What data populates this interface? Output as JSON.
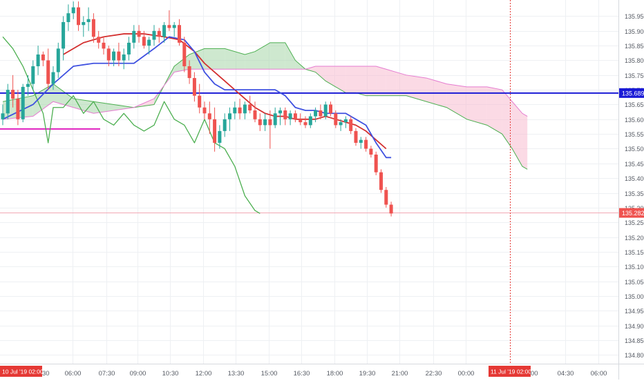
{
  "chart_data": {
    "type": "candlestick",
    "title": "",
    "xlabel": "",
    "ylabel": "",
    "ylim": [
      134.77,
      136.005
    ],
    "y_ticks": [
      134.8,
      134.85,
      134.9,
      134.95,
      135.0,
      135.05,
      135.1,
      135.15,
      135.2,
      135.25,
      135.3,
      135.35,
      135.4,
      135.45,
      135.5,
      135.55,
      135.6,
      135.65,
      135.7,
      135.75,
      135.8,
      135.85,
      135.9,
      135.95
    ],
    "y_tick_labels": [
      "134.800",
      "134.850",
      "134.900",
      "134.950",
      "135.000",
      "135.050",
      "135.100",
      "135.150",
      "135.200",
      "135.250",
      "135.300",
      "135.350",
      "135.400",
      "135.450",
      "135.500",
      "135.550",
      "135.600",
      "135.650",
      "135.700",
      "135.750",
      "135.800",
      "135.850",
      "135.900",
      "135.950"
    ],
    "x_time_range": [
      "03:00",
      "07:45"
    ],
    "x_ticks": [
      {
        "t": "06:00",
        "label": "06:00"
      },
      {
        "t": "07:30",
        "label": "07:30"
      },
      {
        "t": "09:00",
        "label": "09:00"
      },
      {
        "t": "10:30",
        "label": "10:30"
      },
      {
        "t": "12:00",
        "label": "12:00"
      },
      {
        "t": "13:30",
        "label": "13:30"
      },
      {
        "t": "15:00",
        "label": "15:00"
      },
      {
        "t": "16:30",
        "label": "16:30"
      },
      {
        "t": "18:00",
        "label": "18:00"
      },
      {
        "t": "19:30",
        "label": "19:30"
      },
      {
        "t": "21:00",
        "label": "21:00"
      },
      {
        "t": "22:30",
        "label": "22:30"
      },
      {
        "t": "00:00",
        "label": "00:00"
      },
      {
        "t": "04:30",
        "label": "04:30"
      },
      {
        "t": "06:00b",
        "label": "06:00"
      }
    ],
    "date_markers": [
      {
        "label": "10 Jul '19   02:00",
        "t": "02:00"
      },
      {
        "label": "11 Jul '19   02:00",
        "t": "02:00b"
      }
    ],
    "partial_labels": [
      {
        "text": "30",
        "near": "03:30"
      },
      {
        "text": "00",
        "near": "03:00b"
      }
    ],
    "colors": {
      "up": "#26a69a",
      "down": "#ef5350",
      "tenkan": "#3f51e0",
      "kijun": "#d32f2f",
      "lagging": "#4caf50",
      "cloud_bull": "#a5d6a7",
      "cloud_bear": "#f8bbd0",
      "hline": "#1a1ad6",
      "segment": "#e020c0",
      "last_price": "#ef5350",
      "time_marker": "#e53935",
      "grid": "#eef0f3"
    },
    "hlines": [
      {
        "name": "",
        "y": 135.689,
        "label": "135.689",
        "color": "#1a1ad6"
      }
    ],
    "segment": {
      "y": 135.567,
      "x_start": "03:00",
      "x_end": "07:30"
    },
    "last_price": {
      "value": 135.282,
      "label": "135.282"
    },
    "time_marker": "02:00b",
    "candles": [
      [
        135.6,
        135.65,
        135.58,
        135.62
      ],
      [
        135.62,
        135.72,
        135.6,
        135.7
      ],
      [
        135.7,
        135.75,
        135.64,
        135.67
      ],
      [
        135.67,
        135.7,
        135.58,
        135.6
      ],
      [
        135.6,
        135.72,
        135.59,
        135.71
      ],
      [
        135.71,
        135.75,
        135.68,
        135.72
      ],
      [
        135.72,
        135.8,
        135.7,
        135.78
      ],
      [
        135.78,
        135.85,
        135.75,
        135.82
      ],
      [
        135.82,
        135.83,
        135.78,
        135.8
      ],
      [
        135.8,
        135.84,
        135.7,
        135.72
      ],
      [
        135.72,
        135.78,
        135.7,
        135.76
      ],
      [
        135.76,
        135.86,
        135.74,
        135.84
      ],
      [
        135.84,
        135.95,
        135.8,
        135.93
      ],
      [
        135.93,
        135.99,
        135.9,
        135.96
      ],
      [
        135.96,
        136.0,
        135.94,
        135.98
      ],
      [
        135.98,
        136.0,
        135.9,
        135.92
      ],
      [
        135.92,
        135.95,
        135.88,
        135.93
      ],
      [
        135.93,
        135.98,
        135.9,
        135.94
      ],
      [
        135.94,
        135.96,
        135.86,
        135.88
      ],
      [
        135.88,
        135.9,
        135.84,
        135.86
      ],
      [
        135.86,
        135.88,
        135.82,
        135.84
      ],
      [
        135.84,
        135.85,
        135.78,
        135.8
      ],
      [
        135.8,
        135.84,
        135.78,
        135.83
      ],
      [
        135.83,
        135.86,
        135.78,
        135.8
      ],
      [
        135.8,
        135.84,
        135.77,
        135.82
      ],
      [
        135.82,
        135.88,
        135.8,
        135.86
      ],
      [
        135.86,
        135.92,
        135.84,
        135.9
      ],
      [
        135.9,
        135.92,
        135.86,
        135.88
      ],
      [
        135.88,
        135.9,
        135.84,
        135.85
      ],
      [
        135.85,
        135.88,
        135.82,
        135.87
      ],
      [
        135.87,
        135.92,
        135.85,
        135.9
      ],
      [
        135.9,
        135.91,
        135.86,
        135.88
      ],
      [
        135.88,
        135.93,
        135.86,
        135.92
      ],
      [
        135.92,
        135.97,
        135.9,
        135.91
      ],
      [
        135.91,
        135.93,
        135.88,
        135.92
      ],
      [
        135.92,
        135.94,
        135.85,
        135.86
      ],
      [
        135.86,
        135.88,
        135.76,
        135.78
      ],
      [
        135.78,
        135.8,
        135.72,
        135.74
      ],
      [
        135.74,
        135.76,
        135.66,
        135.68
      ],
      [
        135.68,
        135.72,
        135.62,
        135.64
      ],
      [
        135.64,
        135.66,
        135.6,
        135.62
      ],
      [
        135.62,
        135.66,
        135.55,
        135.6
      ],
      [
        135.6,
        135.64,
        135.49,
        135.52
      ],
      [
        135.52,
        135.58,
        135.5,
        135.56
      ],
      [
        135.56,
        135.62,
        135.54,
        135.6
      ],
      [
        135.6,
        135.64,
        135.56,
        135.62
      ],
      [
        135.62,
        135.66,
        135.6,
        135.64
      ],
      [
        135.64,
        135.67,
        135.6,
        135.62
      ],
      [
        135.62,
        135.66,
        135.6,
        135.65
      ],
      [
        135.65,
        135.68,
        135.62,
        135.63
      ],
      [
        135.63,
        135.66,
        135.59,
        135.6
      ],
      [
        135.6,
        135.62,
        135.56,
        135.58
      ],
      [
        135.58,
        135.62,
        135.56,
        135.6
      ],
      [
        135.6,
        135.63,
        135.5,
        135.58
      ],
      [
        135.58,
        135.64,
        135.57,
        135.62
      ],
      [
        135.62,
        135.64,
        135.58,
        135.63
      ],
      [
        135.63,
        135.64,
        135.58,
        135.6
      ],
      [
        135.6,
        135.63,
        135.58,
        135.62
      ],
      [
        135.62,
        135.63,
        135.59,
        135.6
      ],
      [
        135.6,
        135.62,
        135.58,
        135.59
      ],
      [
        135.59,
        135.61,
        135.57,
        135.58
      ],
      [
        135.58,
        135.62,
        135.57,
        135.61
      ],
      [
        135.61,
        135.64,
        135.59,
        135.63
      ],
      [
        135.63,
        135.65,
        135.6,
        135.61
      ],
      [
        135.61,
        135.66,
        135.6,
        135.65
      ],
      [
        135.65,
        135.66,
        135.61,
        135.62
      ],
      [
        135.62,
        135.63,
        135.57,
        135.58
      ],
      [
        135.58,
        135.6,
        135.56,
        135.59
      ],
      [
        135.59,
        135.61,
        135.57,
        135.6
      ],
      [
        135.6,
        135.61,
        135.55,
        135.56
      ],
      [
        135.56,
        135.57,
        135.51,
        135.52
      ],
      [
        135.52,
        135.54,
        135.5,
        135.53
      ],
      [
        135.53,
        135.54,
        135.49,
        135.5
      ],
      [
        135.5,
        135.51,
        135.47,
        135.48
      ],
      [
        135.48,
        135.49,
        135.41,
        135.42
      ],
      [
        135.42,
        135.43,
        135.35,
        135.36
      ],
      [
        135.36,
        135.37,
        135.3,
        135.31
      ],
      [
        135.31,
        135.32,
        135.27,
        135.28
      ]
    ],
    "tenkan": [
      [
        0,
        135.6
      ],
      [
        6,
        135.65
      ],
      [
        10,
        135.72
      ],
      [
        14,
        135.78
      ],
      [
        18,
        135.79
      ],
      [
        22,
        135.79
      ],
      [
        26,
        135.79
      ],
      [
        30,
        135.84
      ],
      [
        33,
        135.88
      ],
      [
        36,
        135.87
      ],
      [
        38,
        135.83
      ],
      [
        40,
        135.76
      ],
      [
        42,
        135.72
      ],
      [
        44,
        135.7
      ],
      [
        46,
        135.7
      ],
      [
        48,
        135.7
      ],
      [
        50,
        135.7
      ],
      [
        52,
        135.7
      ],
      [
        54,
        135.7
      ],
      [
        56,
        135.68
      ],
      [
        58,
        135.64
      ],
      [
        60,
        135.63
      ],
      [
        62,
        135.63
      ],
      [
        64,
        135.62
      ],
      [
        66,
        135.62
      ],
      [
        68,
        135.62
      ],
      [
        70,
        135.6
      ],
      [
        72,
        135.58
      ],
      [
        74,
        135.52
      ],
      [
        76,
        135.47
      ],
      [
        77,
        135.47
      ]
    ],
    "kijun": [
      [
        12,
        135.82
      ],
      [
        16,
        135.86
      ],
      [
        20,
        135.88
      ],
      [
        24,
        135.89
      ],
      [
        28,
        135.89
      ],
      [
        32,
        135.88
      ],
      [
        35,
        135.87
      ],
      [
        38,
        135.83
      ],
      [
        40,
        135.79
      ],
      [
        42,
        135.76
      ],
      [
        44,
        135.73
      ],
      [
        46,
        135.7
      ],
      [
        48,
        135.67
      ],
      [
        50,
        135.64
      ],
      [
        52,
        135.62
      ],
      [
        54,
        135.61
      ],
      [
        56,
        135.61
      ],
      [
        58,
        135.6
      ],
      [
        60,
        135.6
      ],
      [
        62,
        135.6
      ],
      [
        64,
        135.61
      ],
      [
        66,
        135.6
      ],
      [
        68,
        135.59
      ],
      [
        70,
        135.58
      ],
      [
        72,
        135.56
      ],
      [
        74,
        135.53
      ],
      [
        76,
        135.5
      ]
    ],
    "lagging": [
      [
        0,
        135.88
      ],
      [
        2,
        135.84
      ],
      [
        4,
        135.78
      ],
      [
        6,
        135.7
      ],
      [
        8,
        135.62
      ],
      [
        9,
        135.52
      ],
      [
        10,
        135.64
      ],
      [
        12,
        135.64
      ],
      [
        14,
        135.68
      ],
      [
        16,
        135.62
      ],
      [
        18,
        135.66
      ],
      [
        20,
        135.6
      ],
      [
        22,
        135.58
      ],
      [
        24,
        135.62
      ],
      [
        26,
        135.58
      ],
      [
        28,
        135.56
      ],
      [
        30,
        135.58
      ],
      [
        32,
        135.66
      ],
      [
        34,
        135.6
      ],
      [
        36,
        135.58
      ],
      [
        38,
        135.52
      ],
      [
        40,
        135.6
      ],
      [
        42,
        135.52
      ],
      [
        44,
        135.5
      ],
      [
        46,
        135.44
      ],
      [
        48,
        135.34
      ],
      [
        50,
        135.29
      ],
      [
        51,
        135.28
      ]
    ],
    "cloud": [
      [
        0,
        135.66,
        135.6
      ],
      [
        6,
        135.68,
        135.61
      ],
      [
        10,
        135.72,
        135.66
      ],
      [
        14,
        135.67,
        135.64
      ],
      [
        18,
        135.66,
        135.62
      ],
      [
        22,
        135.65,
        135.63
      ],
      [
        26,
        135.64,
        135.64
      ],
      [
        30,
        135.65,
        135.67
      ],
      [
        34,
        135.78,
        135.76
      ],
      [
        37,
        135.82,
        135.77
      ],
      [
        40,
        135.84,
        135.77
      ],
      [
        44,
        135.84,
        135.77
      ],
      [
        48,
        135.82,
        135.77
      ],
      [
        50,
        135.83,
        135.77
      ],
      [
        53,
        135.86,
        135.77
      ],
      [
        56,
        135.86,
        135.77
      ],
      [
        58,
        135.8,
        135.77
      ],
      [
        60,
        135.77,
        135.77
      ],
      [
        62,
        135.76,
        135.78
      ],
      [
        64,
        135.73,
        135.78
      ],
      [
        66,
        135.71,
        135.78
      ],
      [
        68,
        135.69,
        135.78
      ],
      [
        70,
        135.69,
        135.78
      ],
      [
        72,
        135.68,
        135.78
      ],
      [
        74,
        135.68,
        135.78
      ],
      [
        76,
        135.68,
        135.77
      ],
      [
        78,
        135.68,
        135.76
      ],
      [
        80,
        135.68,
        135.75
      ],
      [
        84,
        135.66,
        135.74
      ],
      [
        88,
        135.64,
        135.72
      ],
      [
        92,
        135.6,
        135.71
      ],
      [
        96,
        135.58,
        135.71
      ],
      [
        99,
        135.55,
        135.7
      ],
      [
        101,
        135.5,
        135.66
      ],
      [
        103,
        135.44,
        135.62
      ],
      [
        104,
        135.43,
        135.61
      ]
    ]
  }
}
